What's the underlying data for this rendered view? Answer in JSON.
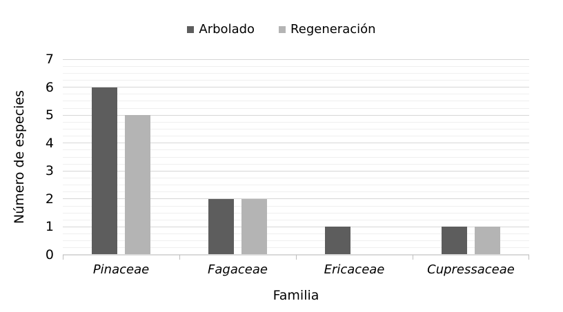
{
  "chart_data": {
    "type": "bar",
    "title": "",
    "categories": [
      "Pinaceae",
      "Fagaceae",
      "Ericaceae",
      "Cupressaceae"
    ],
    "series": [
      {
        "name": "Arbolado",
        "color": "#5d5d5d",
        "values": [
          6,
          2,
          1,
          1
        ]
      },
      {
        "name": "Regeneración",
        "color": "#b4b4b4",
        "values": [
          5,
          2,
          0,
          1
        ]
      }
    ],
    "xlabel": "Familia",
    "ylabel": "Número de especies",
    "ylim": [
      0,
      7
    ],
    "ytick_values": [
      0,
      1,
      2,
      3,
      4,
      5,
      6,
      7
    ],
    "minor_gridline_divisions": 4,
    "grid": true,
    "legend_position": "top",
    "category_label_style": "italic",
    "zero_value_bars_hidden": true
  },
  "style": {
    "series_colors": [
      "#5d5d5d",
      "#b4b4b4"
    ],
    "major_gridline_color": "#d6d6d6",
    "minor_gridline_color": "#efefef",
    "axis_line_color": "#d9d9d9",
    "tick_color": "#bdbdbd",
    "text_color": "#000000",
    "background_color": "#ffffff"
  }
}
